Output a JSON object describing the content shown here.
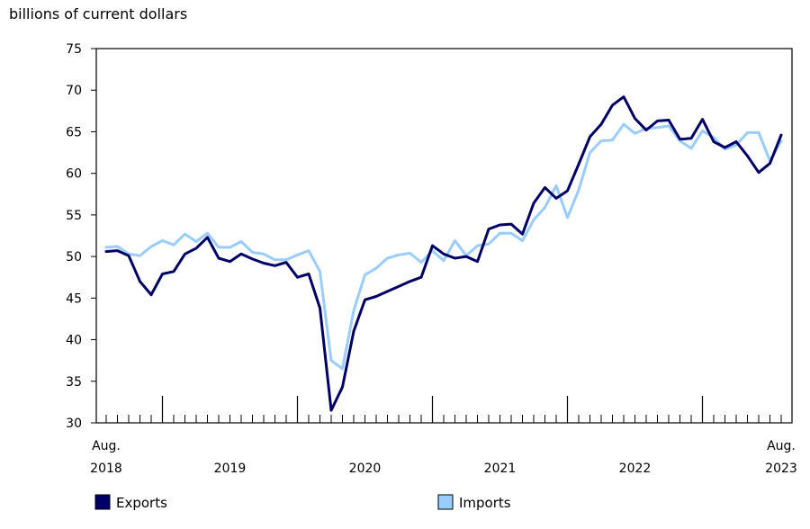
{
  "chart_data": {
    "type": "line",
    "y_unit_label": "billions of current dollars",
    "ylim": [
      30,
      75
    ],
    "y_ticks": [
      30,
      35,
      40,
      45,
      50,
      55,
      60,
      65,
      70,
      75
    ],
    "x_start": "2018-08",
    "x_end": "2023-08",
    "x_tick_labels": [
      {
        "month": "2018-08",
        "line1": "Aug.",
        "line2": "2018"
      },
      {
        "month": "2019-07",
        "line1": "",
        "line2": "2019"
      },
      {
        "month": "2020-07",
        "line1": "",
        "line2": "2020"
      },
      {
        "month": "2021-07",
        "line1": "",
        "line2": "2021"
      },
      {
        "month": "2022-07",
        "line1": "",
        "line2": "2022"
      },
      {
        "month": "2023-08",
        "line1": "Aug.",
        "line2": "2023"
      }
    ],
    "grid": false,
    "legend_position": "bottom",
    "series": [
      {
        "name": "Exports",
        "color": "#000066",
        "values": [
          50.6,
          50.7,
          50.1,
          47.0,
          45.4,
          47.9,
          48.2,
          50.3,
          51.0,
          52.3,
          49.8,
          49.4,
          50.3,
          49.7,
          49.2,
          48.9,
          49.3,
          47.5,
          47.9,
          43.8,
          31.5,
          34.3,
          41.0,
          44.8,
          45.2,
          45.8,
          46.4,
          47.0,
          47.5,
          51.3,
          50.3,
          49.8,
          50.0,
          49.4,
          53.3,
          53.8,
          53.9,
          52.7,
          56.4,
          58.3,
          57.0,
          57.9,
          61.1,
          64.4,
          65.9,
          68.2,
          69.2,
          66.6,
          65.2,
          66.3,
          66.4,
          64.1,
          64.2,
          66.5,
          63.8,
          63.1,
          63.8,
          62.1,
          60.1,
          61.2,
          64.6
        ]
      },
      {
        "name": "Imports",
        "color": "#99ccff",
        "values": [
          51.1,
          51.2,
          50.3,
          50.1,
          51.2,
          51.9,
          51.4,
          52.7,
          51.8,
          52.8,
          51.1,
          51.1,
          51.8,
          50.5,
          50.3,
          49.6,
          49.6,
          50.2,
          50.7,
          48.2,
          37.5,
          36.5,
          43.5,
          47.8,
          48.6,
          49.8,
          50.2,
          50.4,
          49.3,
          50.7,
          49.5,
          51.9,
          50.1,
          51.3,
          51.5,
          52.8,
          52.8,
          51.9,
          54.4,
          55.9,
          58.5,
          54.7,
          58.0,
          62.5,
          63.9,
          64.0,
          65.9,
          64.8,
          65.4,
          65.5,
          65.7,
          63.9,
          63.0,
          65.1,
          64.3,
          62.9,
          63.4,
          64.9,
          64.9,
          61.5,
          63.9
        ]
      }
    ]
  }
}
